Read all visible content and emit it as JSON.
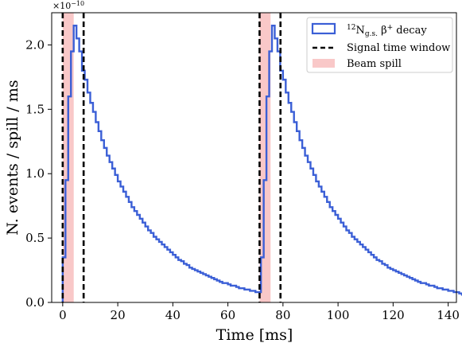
{
  "chart_data": {
    "type": "step",
    "title": "",
    "xlabel": "Time [ms]",
    "ylabel": "N. events / spill / ms",
    "y_multiplier_label": "×10",
    "y_multiplier_exponent": "−10",
    "xlim": [
      -4,
      143
    ],
    "ylim": [
      0,
      2.25
    ],
    "x_ticks": [
      0,
      20,
      40,
      60,
      80,
      100,
      120,
      140
    ],
    "x_tick_labels": [
      "0",
      "20",
      "40",
      "60",
      "80",
      "100",
      "120",
      "140"
    ],
    "y_ticks": [
      0,
      0.5,
      1.0,
      1.5,
      2.0
    ],
    "y_tick_labels": [
      "0.0",
      "0.5",
      "1.0",
      "1.5",
      "2.0"
    ],
    "grid": false,
    "legend_position": "top-right",
    "series": [
      {
        "name_prefix": "12",
        "name_base": "N",
        "name_subscript": "g.s.",
        "name_suffix": " β",
        "name_superscript": "+",
        "name_tail": " decay",
        "color": "#3b5fd6",
        "bin_width": 1.0,
        "x_start": 0,
        "values": [
          0.35,
          0.95,
          1.6,
          1.95,
          2.15,
          2.05,
          1.95,
          1.8,
          1.73,
          1.63,
          1.55,
          1.48,
          1.4,
          1.33,
          1.26,
          1.2,
          1.14,
          1.09,
          1.04,
          0.99,
          0.94,
          0.9,
          0.86,
          0.82,
          0.78,
          0.74,
          0.71,
          0.68,
          0.65,
          0.62,
          0.59,
          0.56,
          0.54,
          0.51,
          0.49,
          0.47,
          0.45,
          0.43,
          0.41,
          0.39,
          0.37,
          0.35,
          0.33,
          0.32,
          0.3,
          0.29,
          0.27,
          0.26,
          0.25,
          0.24,
          0.23,
          0.22,
          0.21,
          0.2,
          0.19,
          0.18,
          0.17,
          0.16,
          0.15,
          0.15,
          0.14,
          0.13,
          0.13,
          0.12,
          0.11,
          0.11,
          0.1,
          0.1,
          0.09,
          0.09,
          0.08,
          0.08,
          0.35,
          0.95,
          1.6,
          1.95,
          2.15,
          2.05,
          1.95,
          1.8,
          1.73,
          1.63,
          1.55,
          1.48,
          1.4,
          1.33,
          1.26,
          1.2,
          1.14,
          1.09,
          1.04,
          0.99,
          0.94,
          0.9,
          0.86,
          0.82,
          0.78,
          0.74,
          0.71,
          0.68,
          0.65,
          0.62,
          0.59,
          0.56,
          0.54,
          0.51,
          0.49,
          0.47,
          0.45,
          0.43,
          0.41,
          0.39,
          0.37,
          0.35,
          0.33,
          0.32,
          0.3,
          0.29,
          0.27,
          0.26,
          0.25,
          0.24,
          0.23,
          0.22,
          0.21,
          0.2,
          0.19,
          0.18,
          0.17,
          0.16,
          0.15,
          0.15,
          0.14,
          0.13,
          0.13,
          0.12,
          0.11,
          0.11,
          0.1,
          0.1,
          0.09,
          0.09,
          0.08,
          0.08,
          0.07,
          0.06
        ]
      },
      {
        "name": "Signal time window",
        "color": "#000000",
        "style": "dashed",
        "x_lines": [
          0,
          7.6,
          71.5,
          79.1
        ]
      },
      {
        "name": "Beam spill",
        "color": "#f5a3a3",
        "style": "band",
        "bands": [
          [
            0,
            4
          ],
          [
            71.5,
            75.5
          ]
        ]
      }
    ]
  }
}
